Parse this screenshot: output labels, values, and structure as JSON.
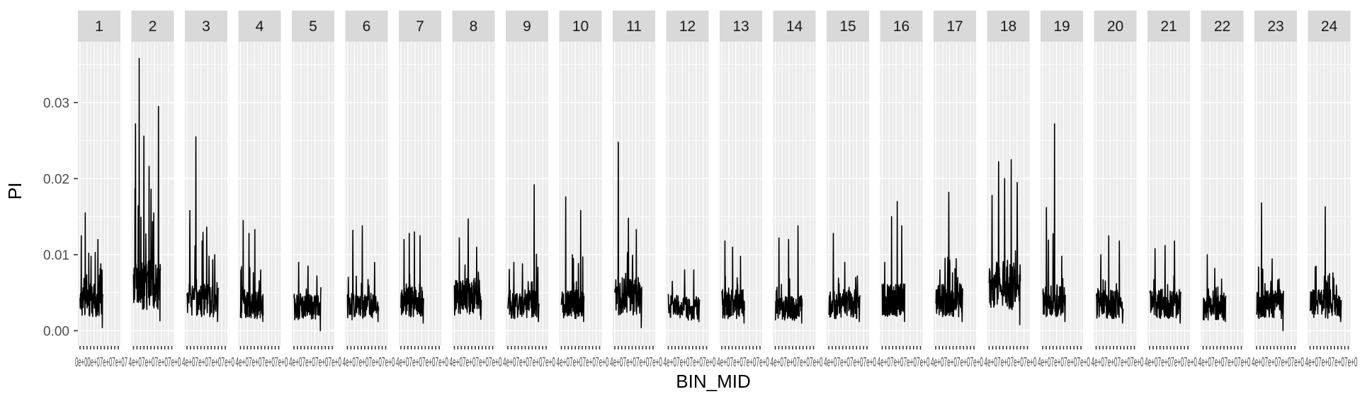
{
  "chart_data": {
    "type": "line",
    "facet_variable": "chromosome",
    "facets": [
      "1",
      "2",
      "3",
      "4",
      "5",
      "6",
      "7",
      "8",
      "9",
      "10",
      "11",
      "12",
      "13",
      "14",
      "15",
      "16",
      "17",
      "18",
      "19",
      "20",
      "21",
      "22",
      "23",
      "24"
    ],
    "xlabel": "BIN_MID",
    "ylabel": "PI",
    "ylim": [
      -0.002,
      0.038
    ],
    "y_ticks": [
      0.0,
      0.01,
      0.02,
      0.03
    ],
    "y_tick_labels": [
      "0.00",
      "0.01",
      "0.02",
      "0.03"
    ],
    "grid": true,
    "background": "#EBEBEB",
    "strip_fill": "#D9D9D9",
    "line_color": "#000000",
    "x_tick_labels_overlapping": "0e+00 … 4e+07 (per panel, overlapping and illegible)",
    "series": [
      {
        "facet": "1",
        "baseline": 0.004,
        "peaks": [
          0.0125,
          0.0155,
          0.0102,
          0.0098,
          0.0103,
          0.012,
          0.0088
        ],
        "min": 0.0004
      },
      {
        "facet": "2",
        "baseline": 0.006,
        "peaks": [
          0.0272,
          0.0358,
          0.0256,
          0.0216,
          0.0155,
          0.0295
        ],
        "min": 0.0013
      },
      {
        "facet": "3",
        "baseline": 0.004,
        "peaks": [
          0.0158,
          0.0255,
          0.0118,
          0.0098,
          0.01
        ],
        "min": 0.0012
      },
      {
        "facet": "4",
        "baseline": 0.0035,
        "peaks": [
          0.0145,
          0.0128,
          0.0133,
          0.008
        ],
        "min": 0.0012
      },
      {
        "facet": "5",
        "baseline": 0.0032,
        "peaks": [
          0.009,
          0.0085,
          0.0072
        ],
        "min": 0.0
      },
      {
        "facet": "6",
        "baseline": 0.0032,
        "peaks": [
          0.0132,
          0.0138,
          0.009
        ],
        "min": 0.0012
      },
      {
        "facet": "7",
        "baseline": 0.004,
        "peaks": [
          0.012,
          0.0128,
          0.013,
          0.0125
        ],
        "min": 0.001
      },
      {
        "facet": "8",
        "baseline": 0.0045,
        "peaks": [
          0.0122,
          0.0147,
          0.011
        ],
        "min": 0.0015
      },
      {
        "facet": "9",
        "baseline": 0.0035,
        "peaks": [
          0.009,
          0.0088,
          0.0192
        ],
        "min": 0.0012
      },
      {
        "facet": "10",
        "baseline": 0.0035,
        "peaks": [
          0.0176,
          0.01,
          0.0158
        ],
        "min": 0.0012
      },
      {
        "facet": "11",
        "baseline": 0.0045,
        "peaks": [
          0.0248,
          0.0148,
          0.007
        ],
        "min": 0.0004
      },
      {
        "facet": "12",
        "baseline": 0.003,
        "peaks": [
          0.0065,
          0.008,
          0.008
        ],
        "min": 0.0012
      },
      {
        "facet": "13",
        "baseline": 0.0035,
        "peaks": [
          0.0118,
          0.011,
          0.0098
        ],
        "min": 0.001
      },
      {
        "facet": "14",
        "baseline": 0.003,
        "peaks": [
          0.0122,
          0.012,
          0.0138
        ],
        "min": 0.001
      },
      {
        "facet": "15",
        "baseline": 0.0035,
        "peaks": [
          0.0128,
          0.009,
          0.007
        ],
        "min": 0.0012
      },
      {
        "facet": "16",
        "baseline": 0.004,
        "peaks": [
          0.009,
          0.015,
          0.017,
          0.0138
        ],
        "min": 0.0012
      },
      {
        "facet": "17",
        "baseline": 0.004,
        "peaks": [
          0.008,
          0.0182,
          0.007
        ],
        "min": 0.0012
      },
      {
        "facet": "18",
        "baseline": 0.006,
        "peaks": [
          0.0178,
          0.0222,
          0.02,
          0.0225,
          0.0195
        ],
        "min": 0.0008
      },
      {
        "facet": "19",
        "baseline": 0.004,
        "peaks": [
          0.0162,
          0.0272,
          0.0098
        ],
        "min": 0.0012
      },
      {
        "facet": "20",
        "baseline": 0.0035,
        "peaks": [
          0.01,
          0.0125,
          0.0118
        ],
        "min": 0.001
      },
      {
        "facet": "21",
        "baseline": 0.0035,
        "peaks": [
          0.0108,
          0.0112,
          0.0118
        ],
        "min": 0.001
      },
      {
        "facet": "22",
        "baseline": 0.003,
        "peaks": [
          0.01,
          0.0082,
          0.0068
        ],
        "min": 0.0012
      },
      {
        "facet": "23",
        "baseline": 0.0035,
        "peaks": [
          0.0168,
          0.0065,
          0.0068
        ],
        "min": 0.0
      },
      {
        "facet": "24",
        "baseline": 0.0035,
        "peaks": [
          0.0085,
          0.0163,
          0.006
        ],
        "min": 0.0012
      }
    ]
  }
}
